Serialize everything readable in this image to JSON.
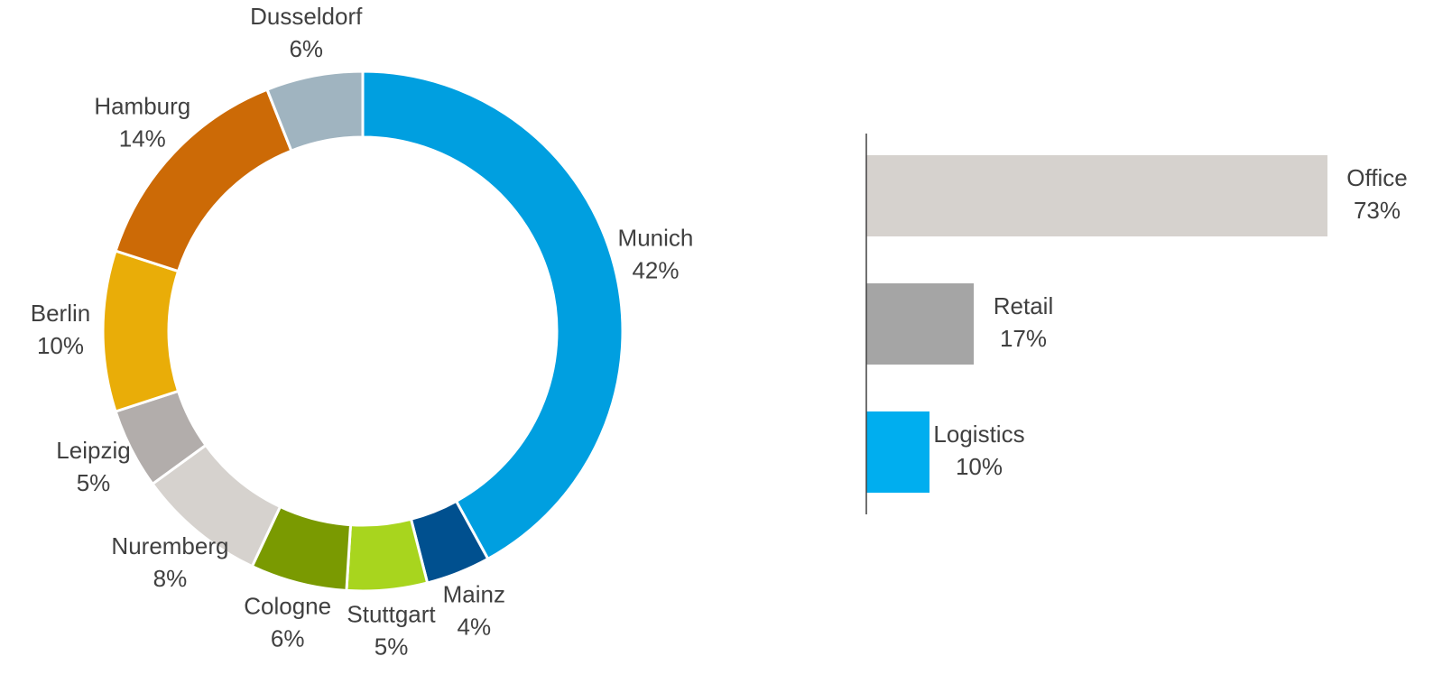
{
  "chart_data": [
    {
      "type": "donut",
      "categories": [
        "Munich",
        "Mainz",
        "Stuttgart",
        "Cologne",
        "Nuremberg",
        "Leipzig",
        "Berlin",
        "Hamburg",
        "Dusseldorf"
      ],
      "values": [
        42,
        4,
        5,
        6,
        8,
        5,
        10,
        14,
        6
      ],
      "value_labels": [
        "42%",
        "4%",
        "5%",
        "6%",
        "8%",
        "5%",
        "10%",
        "14%",
        "6%"
      ],
      "colors": [
        "#009fe0",
        "#00508f",
        "#a8d51e",
        "#7a9a01",
        "#d6d2ce",
        "#b2adab",
        "#e9ad08",
        "#cc6a06",
        "#a0b4c0"
      ]
    },
    {
      "type": "hbar",
      "categories": [
        "Office",
        "Retail",
        "Logistics"
      ],
      "values": [
        73,
        17,
        10
      ],
      "value_labels": [
        "73%",
        "17%",
        "10%"
      ],
      "colors": [
        "#d6d2ce",
        "#a5a5a5",
        "#00aeef"
      ],
      "xlim": [
        0,
        100
      ]
    }
  ]
}
